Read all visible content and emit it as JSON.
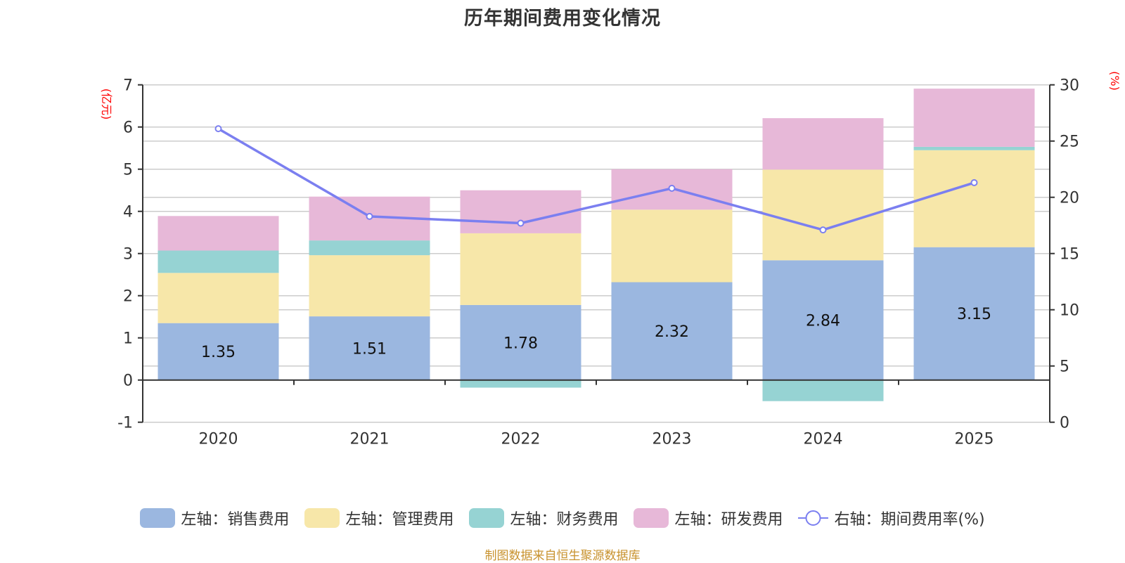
{
  "chart_data": {
    "type": "bar",
    "stacked": true,
    "title": "历年期间费用变化情况",
    "categories": [
      "2020",
      "2021",
      "2022",
      "2023",
      "2024",
      "2025"
    ],
    "left_axis": {
      "unit": "(亿元)",
      "ylim": [
        -1,
        7
      ],
      "ticks": [
        -1,
        0,
        1,
        2,
        3,
        4,
        5,
        6,
        7
      ]
    },
    "right_axis": {
      "unit": "(%)",
      "ylim": [
        0,
        30
      ],
      "ticks": [
        0,
        5,
        10,
        15,
        20,
        25,
        30
      ]
    },
    "grid": true,
    "legend_position": "bottom",
    "series": [
      {
        "name": "左轴：销售费用",
        "type": "bar",
        "axis": "left",
        "color": "#9bb7e0",
        "values": [
          1.35,
          1.51,
          1.78,
          2.32,
          2.84,
          3.15
        ],
        "show_labels": true
      },
      {
        "name": "左轴：管理费用",
        "type": "bar",
        "axis": "left",
        "color": "#f7e7a9",
        "values": [
          1.19,
          1.45,
          1.7,
          1.72,
          2.15,
          2.3
        ],
        "show_labels": false
      },
      {
        "name": "左轴：财务费用",
        "type": "bar",
        "axis": "left",
        "color": "#96d3d3",
        "values": [
          0.53,
          0.35,
          -0.18,
          -0.01,
          -0.5,
          0.08
        ],
        "show_labels": false
      },
      {
        "name": "左轴：研发费用",
        "type": "bar",
        "axis": "left",
        "color": "#e7b8d8",
        "values": [
          0.82,
          1.04,
          1.02,
          0.96,
          1.22,
          1.38
        ],
        "show_labels": false
      },
      {
        "name": "右轴：期间费用率(%)",
        "type": "line",
        "axis": "right",
        "color": "#7b7ff0",
        "values": [
          26.1,
          18.3,
          17.7,
          20.8,
          17.1,
          21.3
        ]
      }
    ]
  },
  "footer": "制图数据来自恒生聚源数据库"
}
